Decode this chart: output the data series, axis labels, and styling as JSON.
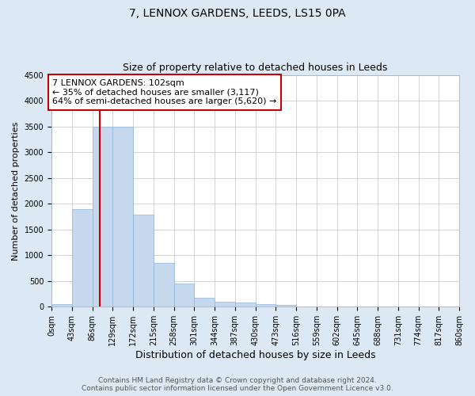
{
  "title": "7, LENNOX GARDENS, LEEDS, LS15 0PA",
  "subtitle": "Size of property relative to detached houses in Leeds",
  "xlabel": "Distribution of detached houses by size in Leeds",
  "ylabel": "Number of detached properties",
  "bar_color": "#c5d8ee",
  "bar_edge_color": "#8db4d8",
  "property_line_color": "#cc0000",
  "property_size": 102,
  "annotation_line1": "7 LENNOX GARDENS: 102sqm",
  "annotation_line2": "← 35% of detached houses are smaller (3,117)",
  "annotation_line3": "64% of semi-detached houses are larger (5,620) →",
  "annotation_box_color": "#ffffff",
  "annotation_box_edge_color": "#cc0000",
  "bins": [
    0,
    43,
    86,
    129,
    172,
    215,
    258,
    301,
    344,
    387,
    430,
    473,
    516,
    559,
    602,
    645,
    688,
    731,
    774,
    817,
    860
  ],
  "counts": [
    55,
    1900,
    3500,
    3490,
    1790,
    850,
    450,
    170,
    105,
    88,
    50,
    38,
    0,
    0,
    0,
    0,
    0,
    0,
    0,
    0
  ],
  "ylim": [
    0,
    4500
  ],
  "yticks": [
    0,
    500,
    1000,
    1500,
    2000,
    2500,
    3000,
    3500,
    4000,
    4500
  ],
  "background_color": "#dce9f5",
  "plot_background_color": "#ffffff",
  "title_fontsize": 10,
  "subtitle_fontsize": 9,
  "xlabel_fontsize": 9,
  "ylabel_fontsize": 8,
  "tick_fontsize": 7,
  "annotation_fontsize": 8,
  "footer_fontsize": 6.5,
  "footer_color": "#555555",
  "footer_line1": "Contains HM Land Registry data © Crown copyright and database right 2024.",
  "footer_line2": "Contains public sector information licensed under the Open Government Licence v3.0."
}
